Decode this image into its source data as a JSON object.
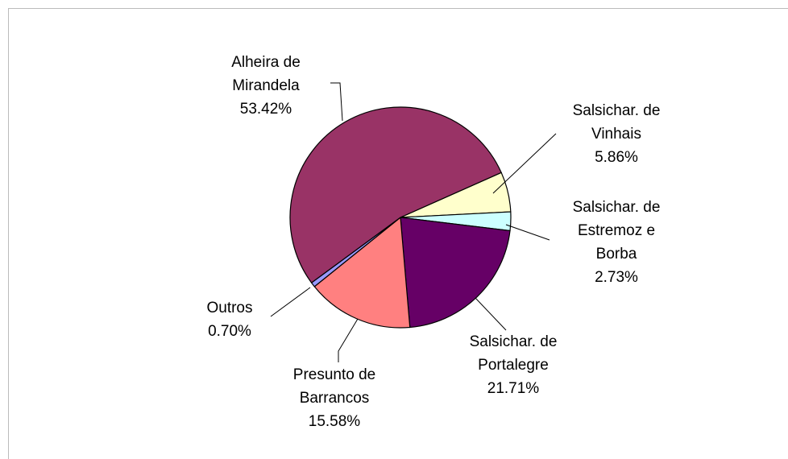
{
  "chart_data": {
    "type": "pie",
    "categories": [
      "Salsichar. de Vinhais",
      "Salsichar. de Estremoz e Borba",
      "Salsichar. de Portalegre",
      "Presunto de Barrancos",
      "Outros",
      "Alheira de Mirandela"
    ],
    "values": [
      5.86,
      2.73,
      21.71,
      15.58,
      0.7,
      53.42
    ],
    "value_labels": [
      "5.86%",
      "2.73%",
      "21.71%",
      "15.58%",
      "0.70%",
      "53.42%"
    ],
    "colors": [
      "#ffffcc",
      "#ccffff",
      "#660066",
      "#ff8080",
      "#9999ff",
      "#993366"
    ]
  }
}
